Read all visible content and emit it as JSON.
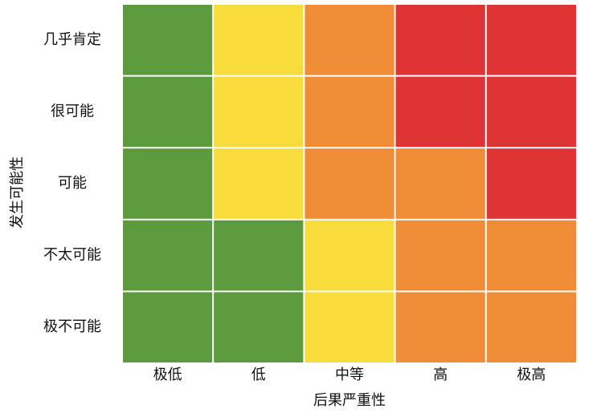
{
  "y_axis": {
    "title": "发生可能性",
    "labels": [
      "几乎肯定",
      "很可能",
      "可能",
      "不太可能",
      "极不可能"
    ]
  },
  "x_axis": {
    "title": "后果严重性",
    "labels": [
      "极低",
      "低",
      "中等",
      "高",
      "极高"
    ]
  },
  "cells": [
    [
      "#5b9a3d",
      "#f7dc3b",
      "#f08b36",
      "#e03434",
      "#e03434"
    ],
    [
      "#5b9a3d",
      "#f7dc3b",
      "#f08b36",
      "#e03434",
      "#e03434"
    ],
    [
      "#5b9a3d",
      "#f7dc3b",
      "#f08b36",
      "#f08b36",
      "#e03434"
    ],
    [
      "#5b9a3d",
      "#5b9a3d",
      "#f7dc3b",
      "#f08b36",
      "#f08b36"
    ],
    [
      "#5b9a3d",
      "#5b9a3d",
      "#f7dc3b",
      "#f08b36",
      "#f08b36"
    ]
  ]
}
